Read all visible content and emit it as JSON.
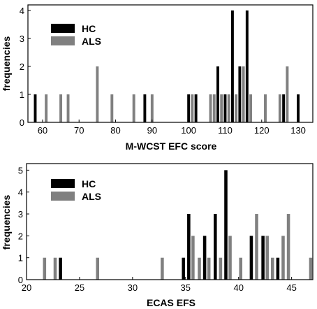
{
  "chart_data": [
    {
      "type": "bar",
      "xlabel": "M-WCST EFC score",
      "ylabel": "frequencies",
      "xlim": [
        56,
        134
      ],
      "ylim": [
        0,
        4.2
      ],
      "xticks": [
        60,
        70,
        80,
        90,
        100,
        110,
        120,
        130
      ],
      "yticks": [
        0,
        1,
        2,
        3,
        4
      ],
      "bar_width": 0.75,
      "legend_position": "top-left",
      "series": [
        {
          "name": "HC",
          "color": "#000000",
          "points": [
            {
              "x": 58,
              "y": 1
            },
            {
              "x": 88,
              "y": 1
            },
            {
              "x": 100,
              "y": 1
            },
            {
              "x": 102,
              "y": 1
            },
            {
              "x": 108,
              "y": 2
            },
            {
              "x": 110,
              "y": 1
            },
            {
              "x": 112,
              "y": 4
            },
            {
              "x": 114,
              "y": 2
            },
            {
              "x": 116,
              "y": 4
            },
            {
              "x": 126,
              "y": 1
            },
            {
              "x": 130,
              "y": 1
            }
          ]
        },
        {
          "name": "ALS",
          "color": "#808080",
          "points": [
            {
              "x": 61,
              "y": 1
            },
            {
              "x": 65,
              "y": 1
            },
            {
              "x": 67,
              "y": 1
            },
            {
              "x": 75,
              "y": 2
            },
            {
              "x": 79,
              "y": 1
            },
            {
              "x": 85,
              "y": 1
            },
            {
              "x": 90,
              "y": 1
            },
            {
              "x": 101,
              "y": 1
            },
            {
              "x": 106,
              "y": 1
            },
            {
              "x": 107,
              "y": 1
            },
            {
              "x": 109,
              "y": 1
            },
            {
              "x": 111,
              "y": 1
            },
            {
              "x": 113,
              "y": 1
            },
            {
              "x": 115,
              "y": 2
            },
            {
              "x": 117,
              "y": 1
            },
            {
              "x": 121,
              "y": 1
            },
            {
              "x": 125,
              "y": 1
            },
            {
              "x": 127,
              "y": 2
            }
          ]
        }
      ]
    },
    {
      "type": "bar",
      "xlabel": "ECAS EFS",
      "ylabel": "frequencies",
      "xlim": [
        20,
        47
      ],
      "ylim": [
        0,
        5.3
      ],
      "xticks": [
        20,
        25,
        30,
        35,
        40,
        45
      ],
      "yticks": [
        0,
        1,
        2,
        3,
        4,
        5
      ],
      "bar_width": 0.3,
      "legend_position": "top-left",
      "series": [
        {
          "name": "HC",
          "color": "#000000",
          "points": [
            {
              "x": 23.2,
              "y": 1
            },
            {
              "x": 34.8,
              "y": 1
            },
            {
              "x": 35.3,
              "y": 3
            },
            {
              "x": 36.8,
              "y": 2
            },
            {
              "x": 37.8,
              "y": 3
            },
            {
              "x": 38.8,
              "y": 5
            },
            {
              "x": 41.2,
              "y": 2
            },
            {
              "x": 42.3,
              "y": 2
            },
            {
              "x": 43.7,
              "y": 1
            }
          ]
        },
        {
          "name": "ALS",
          "color": "#808080",
          "points": [
            {
              "x": 21.7,
              "y": 1
            },
            {
              "x": 22.7,
              "y": 1
            },
            {
              "x": 26.7,
              "y": 1
            },
            {
              "x": 32.8,
              "y": 1
            },
            {
              "x": 35.7,
              "y": 2
            },
            {
              "x": 36.3,
              "y": 1
            },
            {
              "x": 37.2,
              "y": 1
            },
            {
              "x": 38.3,
              "y": 1
            },
            {
              "x": 39.2,
              "y": 2
            },
            {
              "x": 40.2,
              "y": 1
            },
            {
              "x": 41.7,
              "y": 3
            },
            {
              "x": 42.7,
              "y": 2
            },
            {
              "x": 43.2,
              "y": 1
            },
            {
              "x": 44.2,
              "y": 2
            },
            {
              "x": 44.7,
              "y": 3
            },
            {
              "x": 46.8,
              "y": 1
            }
          ]
        }
      ]
    }
  ]
}
